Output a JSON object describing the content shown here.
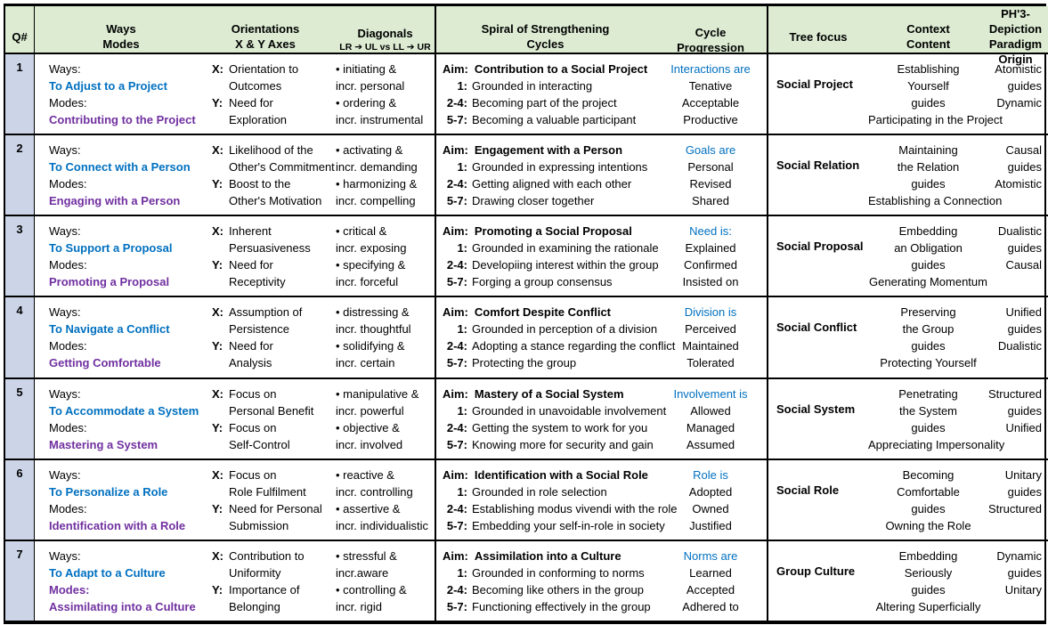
{
  "colors": {
    "header_bg": "#dcebd2",
    "qcol_bg": "#ccd5e8",
    "blue": "#0070c0",
    "purple": "#7030a0",
    "border": "#000000"
  },
  "labels": {
    "aim": "Aim:",
    "s1": "1:",
    "s24": "2-4:",
    "s57": "5-7:",
    "x": "X:",
    "y": "Y:"
  },
  "header": {
    "q": "Q#",
    "ways": [
      "Ways",
      "Modes"
    ],
    "orientations": [
      "Orientations",
      "X & Y Axes"
    ],
    "diagonals": [
      "Diagonals",
      "LR ➔ UL  vs LL ➔ UR"
    ],
    "spiral": [
      "Spiral of Strengthening",
      "Cycles"
    ],
    "cycle": [
      "Cycle",
      "Progression"
    ],
    "tree": "Tree focus",
    "context": [
      "Context",
      "Content"
    ],
    "ph3": [
      "PH'3-Depiction",
      "Paradigm Origin"
    ]
  },
  "rows": [
    {
      "q": "1",
      "ways_label": "Ways:",
      "ways": "To Adjust to a Project",
      "modes_label": "Modes:",
      "modes": "Contributing to the Project",
      "modes_label_purple": false,
      "x_lines": [
        "Orientation to",
        "Outcomes"
      ],
      "y_lines": [
        "Need for",
        "Exploration"
      ],
      "diag": [
        "• initiating &",
        "incr. personal",
        "• ordering &",
        "incr. instrumental"
      ],
      "aim": "Contribution to a Social Project",
      "s1": "Grounded in interacting",
      "s24": "Becoming part of the project",
      "s57": "Becoming a valuable participant",
      "cycle": [
        "Interactions are",
        "Tenative",
        "Acceptable",
        "Productive"
      ],
      "tree": "Social Project",
      "context": [
        "Establishing",
        "Yourself",
        "guides",
        "Participating in the Project"
      ],
      "ph3": [
        "Atomistic",
        "guides",
        "Dynamic"
      ]
    },
    {
      "q": "2",
      "ways_label": "Ways:",
      "ways": "To Connect with a Person",
      "modes_label": "Modes:",
      "modes": "Engaging with a Person",
      "modes_label_purple": false,
      "x_lines": [
        "Likelihood of the",
        "Other's Commitment"
      ],
      "y_lines": [
        "Boost to the",
        "Other's Motivation"
      ],
      "diag": [
        "• activating &",
        "incr. demanding",
        "• harmonizing  &",
        "incr. compelling"
      ],
      "aim": "Engagement with a Person",
      "s1": "Grounded in expressing intentions",
      "s24": "Getting aligned with each other",
      "s57": "Drawing closer together",
      "cycle": [
        "Goals are",
        "Personal",
        "Revised",
        "Shared"
      ],
      "tree": "Social Relation",
      "context": [
        "Maintaining",
        "the Relation",
        "guides",
        "Establishing a Connection"
      ],
      "ph3": [
        "Causal",
        "guides",
        "Atomistic"
      ]
    },
    {
      "q": "3",
      "ways_label": "Ways:",
      "ways": "To Support a Proposal",
      "modes_label": "Modes:",
      "modes": "Promoting a Proposal",
      "modes_label_purple": false,
      "x_lines": [
        "Inherent",
        "Persuasiveness"
      ],
      "y_lines": [
        "Need for",
        "Receptivity"
      ],
      "diag": [
        "• critical &",
        "incr. exposing",
        "• specifying &",
        "incr. forceful"
      ],
      "aim": "Promoting a Social Proposal",
      "s1": "Grounded in examining the rationale",
      "s24": "Developiing interest within the group",
      "s57": "Forging a group consensus",
      "cycle": [
        "Need is:",
        "Explained",
        "Confirmed",
        "Insisted on"
      ],
      "tree": "Social Proposal",
      "context": [
        "Embedding",
        "an Obligation",
        "guides",
        "Generating Momentum"
      ],
      "ph3": [
        "Dualistic",
        "guides",
        "Causal"
      ]
    },
    {
      "q": "4",
      "ways_label": "Ways:",
      "ways": "To Navigate a Conflict",
      "modes_label": "Modes:",
      "modes": "Getting Comfortable",
      "modes_label_purple": false,
      "x_lines": [
        "Assumption of",
        "Persistence"
      ],
      "y_lines": [
        "Need for",
        "Analysis"
      ],
      "diag": [
        "• distressing  &",
        "incr. thoughtful",
        "• solidifying &",
        "incr. certain"
      ],
      "aim": "Comfort Despite Conflict",
      "s1": "Grounded in perception of a division",
      "s24": "Adopting a stance regarding the conflict",
      "s57": "Protecting the group",
      "cycle": [
        "Division is",
        "Perceived",
        "Maintained",
        "Tolerated"
      ],
      "tree": "Social Conflict",
      "context": [
        "Preserving",
        "the Group",
        "guides",
        "Protecting Yourself"
      ],
      "ph3": [
        "Unified",
        "guides",
        "Dualistic"
      ]
    },
    {
      "q": "5",
      "ways_label": "Ways:",
      "ways": "To Accommodate a System",
      "modes_label": "Modes:",
      "modes": "Mastering a System",
      "modes_label_purple": false,
      "x_lines": [
        "Focus on",
        "Personal Benefit"
      ],
      "y_lines": [
        "Focus on",
        "Self-Control"
      ],
      "diag": [
        "• manipulative &",
        "incr. powerful",
        "• objective  &",
        "incr. involved"
      ],
      "aim": "Mastery of a Social System",
      "s1": "Grounded in unavoidable involvement",
      "s24": "Getting the system to work for  you",
      "s57": "Knowing more for security and gain",
      "cycle": [
        "Involvement is",
        "Allowed",
        "Managed",
        "Assumed"
      ],
      "tree": "Social System",
      "context": [
        "Penetrating",
        "the System",
        "guides",
        "Appreciating Impersonality"
      ],
      "ph3": [
        "Structured",
        "guides",
        "Unified"
      ]
    },
    {
      "q": "6",
      "ways_label": "Ways:",
      "ways": "To Personalize a Role",
      "modes_label": "Modes:",
      "modes": "Identification with a Role",
      "modes_label_purple": false,
      "x_lines": [
        "Focus on",
        "Role Fulfilment"
      ],
      "y_lines": [
        "Need for Personal",
        "Submission"
      ],
      "diag": [
        "• reactive &",
        "incr. controlling",
        "• assertive &",
        "incr. individualistic"
      ],
      "aim": "Identification with a Social Role",
      "s1": "Grounded in role selection",
      "s24": "Establishing modus vivendi with the role",
      "s57": "Embedding your self-in-role in society",
      "cycle": [
        "Role is",
        "Adopted",
        "Owned",
        "Justified"
      ],
      "tree": "Social Role",
      "context": [
        "Becoming",
        "Comfortable",
        "guides",
        "Owning the Role"
      ],
      "ph3": [
        "Unitary",
        "guides",
        "Structured"
      ]
    },
    {
      "q": "7",
      "ways_label": "Ways:",
      "ways": "To Adapt to a Culture",
      "modes_label": "Modes:",
      "modes": "Assimilating into a Culture",
      "modes_label_purple": true,
      "x_lines": [
        "Contribution to",
        "Uniformity"
      ],
      "y_lines": [
        "Importance of",
        "Belonging"
      ],
      "diag": [
        "• stressful &",
        "incr.aware",
        "• controlling &",
        "incr. rigid"
      ],
      "aim": "Assimilation into a Culture",
      "s1": "Grounded in conforming to norms",
      "s24": "Becoming like others in the group",
      "s57": "Functioning effectively in the group",
      "cycle": [
        "Norms are",
        "Learned",
        "Accepted",
        "Adhered to"
      ],
      "tree": "Group Culture",
      "context": [
        "Embedding",
        "Seriously",
        "guides",
        "Altering Superficially"
      ],
      "ph3": [
        "Dynamic",
        "guides",
        "Unitary"
      ]
    }
  ]
}
